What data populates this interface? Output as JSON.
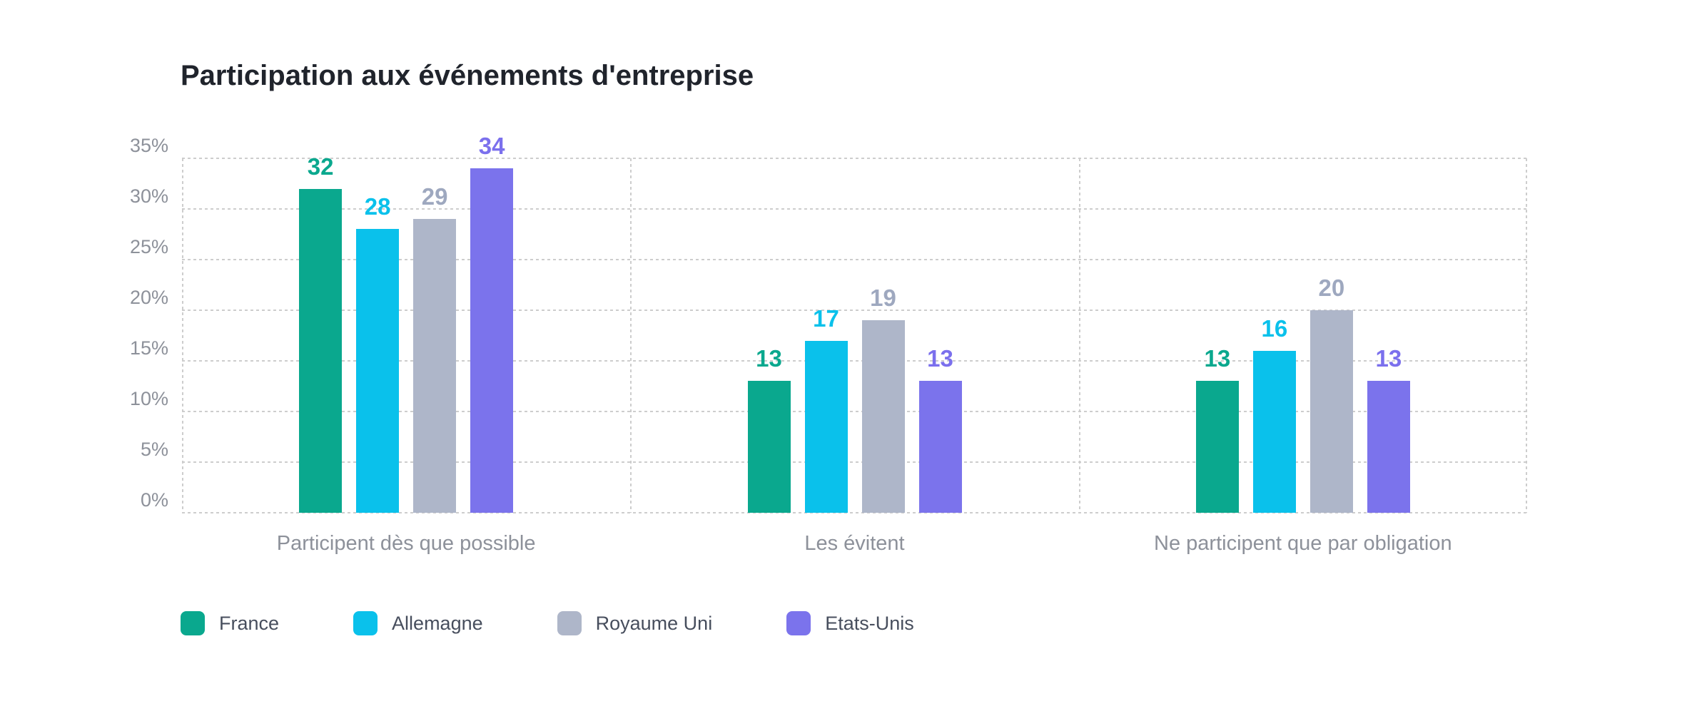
{
  "chart": {
    "title": "Participation aux événements d'entreprise"
  },
  "chart_data": {
    "type": "bar",
    "title": "Participation aux événements d'entreprise",
    "categories": [
      "Participent dès que possible",
      "Les évitent",
      "Ne participent que par obligation"
    ],
    "series": [
      {
        "name": "France",
        "color": "#0aa88e",
        "label_color": "#0aa88e",
        "values": [
          32,
          13,
          13
        ]
      },
      {
        "name": "Allemagne",
        "color": "#0ac1eb",
        "label_color": "#0ac1eb",
        "values": [
          28,
          17,
          16
        ]
      },
      {
        "name": "Royaume Uni",
        "color": "#aeb6c9",
        "label_color": "#9ea8bf",
        "values": [
          29,
          19,
          20
        ]
      },
      {
        "name": "Etats-Unis",
        "color": "#7b73ec",
        "label_color": "#7b70ed",
        "values": [
          34,
          13,
          13
        ]
      }
    ],
    "y_axis": {
      "unit": "%",
      "min": 0,
      "max": 35,
      "step": 5,
      "tick_labels": [
        "35%",
        "30%",
        "25%",
        "20%",
        "15%",
        "10%",
        "5%",
        "0%"
      ]
    },
    "grid": "dashed",
    "grid_color": "#cdcdcd",
    "axis_text_color": "#8d919a",
    "legend_position": "bottom",
    "value_labels_shown": true
  }
}
